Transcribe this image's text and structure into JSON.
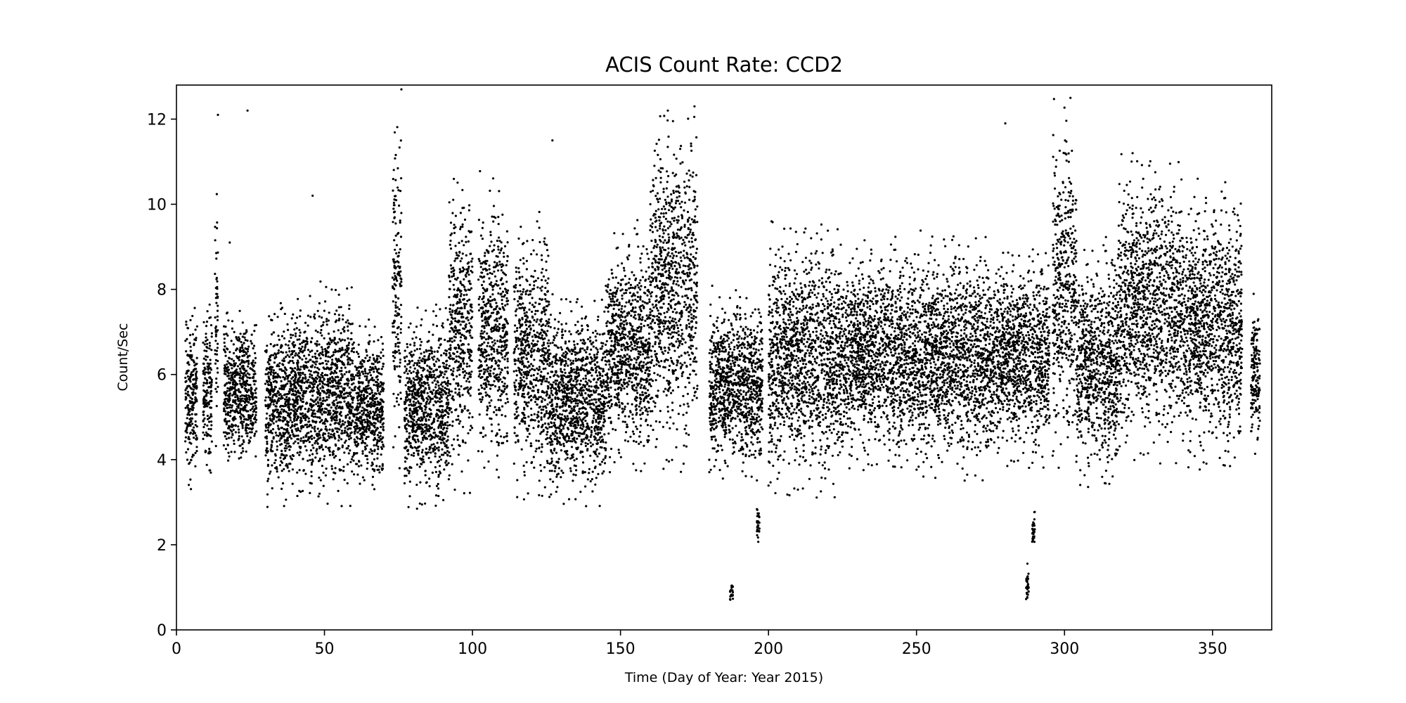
{
  "chart_data": {
    "type": "scatter",
    "title": "ACIS Count Rate: CCD2",
    "xlabel": "Time (Day of Year: Year 2015)",
    "ylabel": "Count/Sec",
    "xlim": [
      0,
      370
    ],
    "ylim": [
      0,
      12.8
    ],
    "xticks": [
      0,
      50,
      100,
      150,
      200,
      250,
      300,
      350
    ],
    "yticks": [
      0,
      2,
      4,
      6,
      8,
      10,
      12
    ],
    "grid": false,
    "legend": "none",
    "marker_color": "#000000",
    "series": [
      {
        "clusters": [
          {
            "x": [
              3,
              7
            ],
            "y": [
              3.3,
              7.6
            ]
          },
          {
            "x": [
              9,
              12
            ],
            "y": [
              3.6,
              7.7
            ]
          },
          {
            "x": [
              13,
              14
            ],
            "y": [
              4.0,
              10.7
            ]
          },
          {
            "x": [
              16,
              27
            ],
            "y": [
              3.7,
              7.5
            ]
          },
          {
            "x": [
              30,
              38
            ],
            "y": [
              2.8,
              7.9
            ]
          },
          {
            "x": [
              38,
              48
            ],
            "y": [
              3.1,
              7.9
            ]
          },
          {
            "x": [
              48,
              60
            ],
            "y": [
              2.9,
              8.2
            ]
          },
          {
            "x": [
              60,
              70
            ],
            "y": [
              3.2,
              7.4
            ]
          },
          {
            "x": [
              73,
              76
            ],
            "y": [
              3.6,
              12.8
            ]
          },
          {
            "x": [
              77,
              92
            ],
            "y": [
              2.8,
              7.7
            ]
          },
          {
            "x": [
              92,
              100
            ],
            "y": [
              3.2,
              10.8
            ]
          },
          {
            "x": [
              102,
              112
            ],
            "y": [
              3.4,
              10.8
            ]
          },
          {
            "x": [
              114,
              126
            ],
            "y": [
              3.0,
              9.9
            ]
          },
          {
            "x": [
              126,
              145
            ],
            "y": [
              2.9,
              7.9
            ]
          },
          {
            "x": [
              145,
              160
            ],
            "y": [
              3.6,
              9.7
            ]
          },
          {
            "x": [
              160,
              176
            ],
            "y": [
              3.7,
              12.3
            ]
          },
          {
            "x": [
              180,
              198
            ],
            "y": [
              3.5,
              8.1
            ]
          },
          {
            "x": [
              200,
              225
            ],
            "y": [
              3.1,
              9.6
            ]
          },
          {
            "x": [
              225,
              250
            ],
            "y": [
              3.7,
              9.3
            ]
          },
          {
            "x": [
              250,
              275
            ],
            "y": [
              3.5,
              9.4
            ]
          },
          {
            "x": [
              275,
              295
            ],
            "y": [
              3.8,
              9.0
            ]
          },
          {
            "x": [
              296,
              304
            ],
            "y": [
              3.7,
              12.5
            ]
          },
          {
            "x": [
              304,
              318
            ],
            "y": [
              3.3,
              9.3
            ]
          },
          {
            "x": [
              318,
              340
            ],
            "y": [
              3.9,
              11.2
            ]
          },
          {
            "x": [
              340,
              360
            ],
            "y": [
              3.7,
              10.6
            ]
          },
          {
            "x": [
              363,
              366
            ],
            "y": [
              4.0,
              8.0
            ]
          },
          {
            "x": [
              187,
              188
            ],
            "y": [
              0.6,
              1.2
            ]
          },
          {
            "x": [
              287,
              288
            ],
            "y": [
              0.5,
              1.6
            ]
          },
          {
            "x": [
              289,
              290
            ],
            "y": [
              1.8,
              2.8
            ]
          },
          {
            "x": [
              196,
              197
            ],
            "y": [
              2.0,
              3.0
            ]
          }
        ],
        "outliers": [
          {
            "x": 14,
            "y": 12.1
          },
          {
            "x": 24,
            "y": 12.2
          },
          {
            "x": 18,
            "y": 9.1
          },
          {
            "x": 46,
            "y": 10.2
          },
          {
            "x": 76,
            "y": 12.7
          },
          {
            "x": 127,
            "y": 11.5
          },
          {
            "x": 166,
            "y": 12.2
          },
          {
            "x": 175,
            "y": 12.3
          },
          {
            "x": 280,
            "y": 11.9
          },
          {
            "x": 302,
            "y": 12.5
          },
          {
            "x": 323,
            "y": 11.2
          },
          {
            "x": 345,
            "y": 10.6
          },
          {
            "x": 201,
            "y": 9.6
          }
        ]
      }
    ]
  }
}
